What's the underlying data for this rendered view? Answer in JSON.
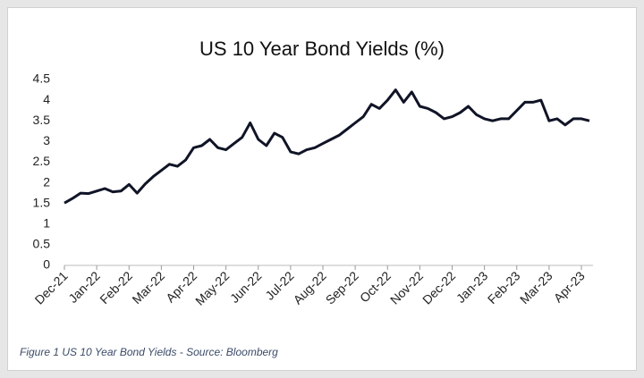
{
  "chart_data": {
    "type": "line",
    "title": "US 10 Year Bond Yields (%)",
    "caption": "Figure 1 US 10 Year Bond Yields - Source: Bloomberg",
    "categories": [
      "Dec-21",
      null,
      null,
      null,
      "Jan-22",
      null,
      null,
      null,
      "Feb-22",
      null,
      null,
      null,
      "Mar-22",
      null,
      null,
      null,
      "Apr-22",
      null,
      null,
      null,
      "May-22",
      null,
      null,
      null,
      "Jun-22",
      null,
      null,
      null,
      "Jul-22",
      null,
      null,
      null,
      "Aug-22",
      null,
      null,
      null,
      "Sep-22",
      null,
      null,
      null,
      "Oct-22",
      null,
      null,
      null,
      "Nov-22",
      null,
      null,
      null,
      "Dec-22",
      null,
      null,
      null,
      "Jan-23",
      null,
      null,
      null,
      "Feb-23",
      null,
      null,
      null,
      "Mar-23",
      null,
      null,
      null,
      "Apr-23",
      null
    ],
    "values": [
      1.51,
      1.62,
      1.75,
      1.74,
      1.8,
      1.86,
      1.78,
      1.8,
      1.96,
      1.75,
      1.97,
      2.15,
      2.3,
      2.45,
      2.4,
      2.55,
      2.85,
      2.9,
      3.05,
      2.85,
      2.8,
      2.95,
      3.1,
      3.45,
      3.05,
      2.9,
      3.2,
      3.1,
      2.75,
      2.7,
      2.8,
      2.85,
      2.95,
      3.05,
      3.15,
      3.3,
      3.45,
      3.6,
      3.9,
      3.8,
      4.0,
      4.25,
      3.95,
      4.2,
      3.85,
      3.8,
      3.7,
      3.55,
      3.6,
      3.7,
      3.85,
      3.65,
      3.55,
      3.5,
      3.55,
      3.55,
      3.75,
      3.95,
      3.95,
      4.0,
      3.5,
      3.55,
      3.4,
      3.55,
      3.55,
      3.5
    ],
    "color": "#101426",
    "ylim": [
      0,
      4.5
    ],
    "yticks": [
      0,
      0.5,
      1,
      1.5,
      2,
      2.5,
      3,
      3.5,
      4,
      4.5
    ],
    "grid": false
  }
}
